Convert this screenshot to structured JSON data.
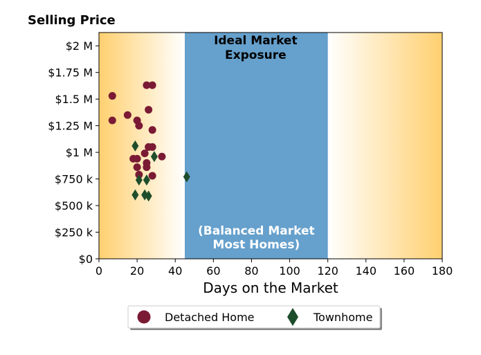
{
  "chart_data": {
    "type": "scatter",
    "title": "Selling Price",
    "xlabel": "Days on the Market",
    "ylabel": "",
    "xlim": [
      0,
      180
    ],
    "ylim": [
      0,
      2125000
    ],
    "xticks": [
      0,
      20,
      40,
      60,
      80,
      100,
      120,
      140,
      160,
      180
    ],
    "xtick_labels": [
      "0",
      "20",
      "40",
      "60",
      "80",
      "100",
      "120",
      "140",
      "160",
      "180"
    ],
    "yticks": [
      0,
      250000,
      500000,
      750000,
      1000000,
      1250000,
      1500000,
      1750000,
      2000000
    ],
    "ytick_labels": [
      "$0",
      "$250 k",
      "$500 k",
      "$750 k",
      "$1 M",
      "$1.25 M",
      "$1.5 M",
      "$1.75 M",
      "$2 M"
    ],
    "grid": false,
    "legend_position": "bottom-center, outside plot",
    "ideal_band": {
      "x_range": [
        45,
        120
      ],
      "color": "#66a0cc",
      "top_label": [
        "Ideal Market",
        "Exposure"
      ],
      "bottom_label": [
        "(Balanced Market",
        "Most Homes)"
      ]
    },
    "gradient_color": "#ffd070",
    "series": [
      {
        "name": "Detached Home",
        "marker": "circle",
        "color": "#7a1a34",
        "points": [
          [
            7,
            1530000
          ],
          [
            7,
            1300000
          ],
          [
            15,
            1350000
          ],
          [
            20,
            1300000
          ],
          [
            21,
            1250000
          ],
          [
            25,
            1630000
          ],
          [
            28,
            1630000
          ],
          [
            26,
            1400000
          ],
          [
            28,
            1210000
          ],
          [
            26,
            1050000
          ],
          [
            28,
            1050000
          ],
          [
            24,
            990000
          ],
          [
            33,
            960000
          ],
          [
            18,
            940000
          ],
          [
            20,
            940000
          ],
          [
            25,
            900000
          ],
          [
            20,
            860000
          ],
          [
            25,
            860000
          ],
          [
            21,
            790000
          ],
          [
            28,
            780000
          ]
        ]
      },
      {
        "name": "Townhome",
        "marker": "diamond",
        "color": "#1e4d2b",
        "points": [
          [
            19,
            1060000
          ],
          [
            29,
            960000
          ],
          [
            21,
            740000
          ],
          [
            25,
            740000
          ],
          [
            46,
            770000
          ],
          [
            19,
            600000
          ],
          [
            24,
            600000
          ],
          [
            26,
            590000
          ]
        ]
      }
    ]
  }
}
